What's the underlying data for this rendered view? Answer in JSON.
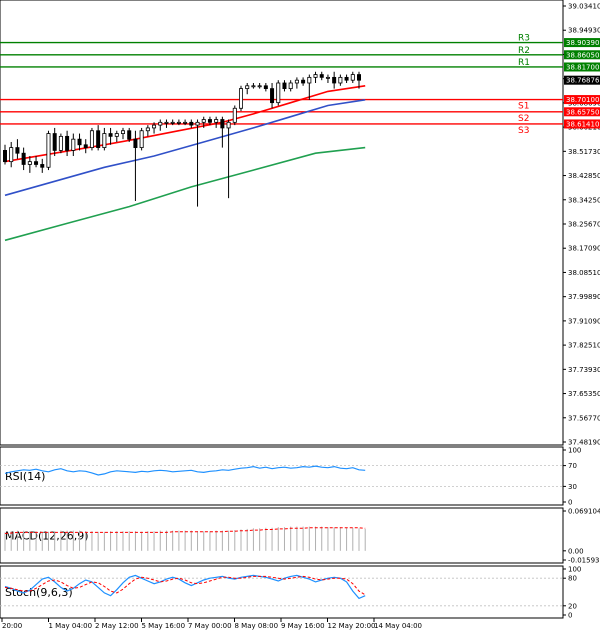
{
  "chart_data": [
    {
      "type": "candlestick",
      "panel": "price",
      "title": "",
      "y_ticks": [
        "39.03410",
        "38.94930",
        "38.86050",
        "38.77570",
        "38.68690",
        "38.60210",
        "38.51730",
        "38.42850",
        "38.34250",
        "38.25670",
        "38.17090",
        "38.08510",
        "37.99890",
        "37.91090",
        "37.82510",
        "37.73930",
        "37.65350",
        "37.56770",
        "37.48190"
      ],
      "ylim": [
        37.4819,
        39.0341
      ],
      "x_ticks": [
        "20:00",
        "1 May 04:00",
        "2 May 12:00",
        "5 May 16:00",
        "7 May 00:00",
        "8 May 08:00",
        "9 May 16:00",
        "12 May 20:00",
        "14 May 04:00"
      ],
      "current_price": "38.76876",
      "levels": [
        {
          "name": "R3",
          "value": 38.9039,
          "label": "38.90390",
          "color": "#008000"
        },
        {
          "name": "R2",
          "value": 38.8605,
          "label": "38.86050",
          "color": "#008000"
        },
        {
          "name": "R1",
          "value": 38.817,
          "label": "38.81700",
          "color": "#008000"
        },
        {
          "name": "S1",
          "value": 38.701,
          "label": "38.70100",
          "color": "#ff0000"
        },
        {
          "name": "S2",
          "value": 38.6575,
          "label": "38.65750",
          "color": "#ff0000"
        },
        {
          "name": "S3",
          "value": 38.6141,
          "label": "38.61410",
          "color": "#ff0000"
        }
      ],
      "candles": [
        {
          "o": 38.52,
          "h": 38.54,
          "l": 38.47,
          "c": 38.48
        },
        {
          "o": 38.48,
          "h": 38.55,
          "l": 38.46,
          "c": 38.53
        },
        {
          "o": 38.53,
          "h": 38.56,
          "l": 38.49,
          "c": 38.51
        },
        {
          "o": 38.51,
          "h": 38.53,
          "l": 38.45,
          "c": 38.47
        },
        {
          "o": 38.47,
          "h": 38.5,
          "l": 38.44,
          "c": 38.48
        },
        {
          "o": 38.48,
          "h": 38.5,
          "l": 38.46,
          "c": 38.47
        },
        {
          "o": 38.47,
          "h": 38.49,
          "l": 38.44,
          "c": 38.46
        },
        {
          "o": 38.46,
          "h": 38.59,
          "l": 38.45,
          "c": 38.58
        },
        {
          "o": 38.58,
          "h": 38.6,
          "l": 38.5,
          "c": 38.52
        },
        {
          "o": 38.52,
          "h": 38.58,
          "l": 38.51,
          "c": 38.57
        },
        {
          "o": 38.57,
          "h": 38.59,
          "l": 38.5,
          "c": 38.52
        },
        {
          "o": 38.52,
          "h": 38.58,
          "l": 38.5,
          "c": 38.56
        },
        {
          "o": 38.56,
          "h": 38.58,
          "l": 38.52,
          "c": 38.54
        },
        {
          "o": 38.54,
          "h": 38.56,
          "l": 38.51,
          "c": 38.53
        },
        {
          "o": 38.53,
          "h": 38.6,
          "l": 38.52,
          "c": 38.59
        },
        {
          "o": 38.59,
          "h": 38.61,
          "l": 38.52,
          "c": 38.53
        },
        {
          "o": 38.53,
          "h": 38.6,
          "l": 38.52,
          "c": 38.58
        },
        {
          "o": 38.58,
          "h": 38.6,
          "l": 38.54,
          "c": 38.57
        },
        {
          "o": 38.57,
          "h": 38.59,
          "l": 38.55,
          "c": 38.58
        },
        {
          "o": 38.58,
          "h": 38.6,
          "l": 38.56,
          "c": 38.59
        },
        {
          "o": 38.59,
          "h": 38.6,
          "l": 38.55,
          "c": 38.56
        },
        {
          "o": 38.56,
          "h": 38.59,
          "l": 38.34,
          "c": 38.53
        },
        {
          "o": 38.53,
          "h": 38.6,
          "l": 38.52,
          "c": 38.59
        },
        {
          "o": 38.59,
          "h": 38.61,
          "l": 38.57,
          "c": 38.6
        },
        {
          "o": 38.6,
          "h": 38.62,
          "l": 38.58,
          "c": 38.61
        },
        {
          "o": 38.61,
          "h": 38.63,
          "l": 38.59,
          "c": 38.62
        },
        {
          "o": 38.62,
          "h": 38.63,
          "l": 38.6,
          "c": 38.62
        },
        {
          "o": 38.62,
          "h": 38.63,
          "l": 38.61,
          "c": 38.62
        },
        {
          "o": 38.62,
          "h": 38.63,
          "l": 38.61,
          "c": 38.62
        },
        {
          "o": 38.62,
          "h": 38.63,
          "l": 38.61,
          "c": 38.62
        },
        {
          "o": 38.62,
          "h": 38.63,
          "l": 38.6,
          "c": 38.61
        },
        {
          "o": 38.61,
          "h": 38.63,
          "l": 38.32,
          "c": 38.62
        },
        {
          "o": 38.62,
          "h": 38.64,
          "l": 38.6,
          "c": 38.63
        },
        {
          "o": 38.63,
          "h": 38.64,
          "l": 38.61,
          "c": 38.62
        },
        {
          "o": 38.62,
          "h": 38.64,
          "l": 38.6,
          "c": 38.63
        },
        {
          "o": 38.63,
          "h": 38.64,
          "l": 38.53,
          "c": 38.6
        },
        {
          "o": 38.6,
          "h": 38.63,
          "l": 38.35,
          "c": 38.62
        },
        {
          "o": 38.62,
          "h": 38.68,
          "l": 38.61,
          "c": 38.67
        },
        {
          "o": 38.67,
          "h": 38.75,
          "l": 38.66,
          "c": 38.74
        },
        {
          "o": 38.74,
          "h": 38.76,
          "l": 38.72,
          "c": 38.75
        },
        {
          "o": 38.75,
          "h": 38.76,
          "l": 38.74,
          "c": 38.75
        },
        {
          "o": 38.75,
          "h": 38.76,
          "l": 38.74,
          "c": 38.75
        },
        {
          "o": 38.75,
          "h": 38.76,
          "l": 38.73,
          "c": 38.74
        },
        {
          "o": 38.74,
          "h": 38.76,
          "l": 38.67,
          "c": 38.69
        },
        {
          "o": 38.69,
          "h": 38.77,
          "l": 38.68,
          "c": 38.76
        },
        {
          "o": 38.76,
          "h": 38.77,
          "l": 38.73,
          "c": 38.74
        },
        {
          "o": 38.74,
          "h": 38.77,
          "l": 38.73,
          "c": 38.76
        },
        {
          "o": 38.76,
          "h": 38.78,
          "l": 38.74,
          "c": 38.77
        },
        {
          "o": 38.77,
          "h": 38.78,
          "l": 38.75,
          "c": 38.76
        },
        {
          "o": 38.76,
          "h": 38.79,
          "l": 38.7,
          "c": 38.78
        },
        {
          "o": 38.78,
          "h": 38.8,
          "l": 38.76,
          "c": 38.79
        },
        {
          "o": 38.79,
          "h": 38.8,
          "l": 38.77,
          "c": 38.78
        },
        {
          "o": 38.78,
          "h": 38.79,
          "l": 38.76,
          "c": 38.78
        },
        {
          "o": 38.78,
          "h": 38.8,
          "l": 38.74,
          "c": 38.76
        },
        {
          "o": 38.76,
          "h": 38.79,
          "l": 38.75,
          "c": 38.78
        },
        {
          "o": 38.78,
          "h": 38.79,
          "l": 38.76,
          "c": 38.77
        },
        {
          "o": 38.77,
          "h": 38.8,
          "l": 38.76,
          "c": 38.79
        },
        {
          "o": 38.79,
          "h": 38.8,
          "l": 38.74,
          "c": 38.77
        }
      ],
      "moving_averages": [
        {
          "color": "#ff0000",
          "x": [
            0,
            8,
            16,
            21,
            28,
            35,
            40,
            46,
            52,
            58
          ],
          "y": [
            38.48,
            38.51,
            38.54,
            38.56,
            38.59,
            38.62,
            38.65,
            38.69,
            38.73,
            38.75
          ]
        },
        {
          "color": "#3050c8",
          "x": [
            0,
            8,
            16,
            24,
            32,
            40,
            46,
            52,
            58
          ],
          "y": [
            38.36,
            38.41,
            38.46,
            38.5,
            38.55,
            38.6,
            38.64,
            38.68,
            38.7
          ]
        },
        {
          "color": "#20a050",
          "x": [
            0,
            10,
            20,
            30,
            40,
            50,
            58
          ],
          "y": [
            38.2,
            38.26,
            38.32,
            38.39,
            38.45,
            38.51,
            38.53
          ]
        }
      ]
    },
    {
      "type": "line",
      "panel": "indicator",
      "label": "RSI(14)",
      "y_ticks": [
        "100",
        "70",
        "30",
        "0"
      ],
      "ylim": [
        0,
        100
      ],
      "values": [
        55,
        58,
        60,
        62,
        61,
        63,
        60,
        58,
        62,
        64,
        60,
        58,
        60,
        59,
        56,
        52,
        54,
        58,
        60,
        59,
        58,
        57,
        59,
        58,
        60,
        61,
        60,
        58,
        59,
        60,
        61,
        58,
        57,
        59,
        60,
        62,
        61,
        63,
        65,
        66,
        68,
        65,
        67,
        64,
        66,
        67,
        65,
        66,
        68,
        67,
        69,
        67,
        66,
        68,
        65,
        64,
        66,
        62,
        61
      ],
      "color": "#1e90ff"
    },
    {
      "type": "bar",
      "panel": "indicator",
      "label": "MACD(12,26,9)",
      "y_ticks": [
        "0.069104",
        "0.00",
        "-0.015936"
      ],
      "ylim": [
        -0.015936,
        0.069104
      ],
      "values": [
        0.032,
        0.034,
        0.035,
        0.035,
        0.034,
        0.034,
        0.033,
        0.033,
        0.034,
        0.035,
        0.035,
        0.035,
        0.035,
        0.034,
        0.034,
        0.033,
        0.033,
        0.034,
        0.034,
        0.034,
        0.034,
        0.034,
        0.033,
        0.034,
        0.034,
        0.035,
        0.035,
        0.035,
        0.035,
        0.035,
        0.035,
        0.034,
        0.034,
        0.034,
        0.035,
        0.035,
        0.035,
        0.036,
        0.037,
        0.038,
        0.039,
        0.039,
        0.04,
        0.04,
        0.041,
        0.041,
        0.042,
        0.042,
        0.042,
        0.042,
        0.042,
        0.042,
        0.041,
        0.041,
        0.041,
        0.04,
        0.04,
        0.039,
        0.038
      ],
      "signal": [
        0.03,
        0.031,
        0.032,
        0.032,
        0.032,
        0.032,
        0.032,
        0.032,
        0.032,
        0.032,
        0.032,
        0.032,
        0.032,
        0.032,
        0.032,
        0.032,
        0.032,
        0.032,
        0.032,
        0.032,
        0.032,
        0.032,
        0.032,
        0.032,
        0.032,
        0.032,
        0.032,
        0.033,
        0.033,
        0.033,
        0.033,
        0.033,
        0.033,
        0.033,
        0.033,
        0.033,
        0.034,
        0.034,
        0.035,
        0.035,
        0.036,
        0.036,
        0.037,
        0.037,
        0.038,
        0.038,
        0.039,
        0.039,
        0.039,
        0.04,
        0.04,
        0.04,
        0.04,
        0.04,
        0.04,
        0.04,
        0.04,
        0.04,
        0.039
      ],
      "color": "#b0b0b0",
      "signal_color": "#ff0000"
    },
    {
      "type": "line",
      "panel": "indicator",
      "label": "Stoch(9,6,3)",
      "y_ticks": [
        "100",
        "80",
        "20",
        "0"
      ],
      "ylim": [
        0,
        100
      ],
      "main": [
        62,
        58,
        52,
        48,
        54,
        66,
        78,
        82,
        72,
        60,
        52,
        58,
        68,
        76,
        72,
        60,
        48,
        42,
        55,
        70,
        82,
        86,
        80,
        74,
        68,
        72,
        78,
        82,
        78,
        70,
        64,
        70,
        76,
        80,
        82,
        84,
        80,
        78,
        82,
        84,
        86,
        84,
        82,
        78,
        74,
        80,
        84,
        86,
        82,
        78,
        72,
        76,
        80,
        82,
        80,
        72,
        52,
        36,
        42
      ],
      "signal": [
        60,
        58,
        55,
        52,
        52,
        58,
        66,
        74,
        76,
        72,
        64,
        58,
        60,
        66,
        72,
        70,
        62,
        52,
        48,
        56,
        68,
        78,
        82,
        80,
        76,
        72,
        74,
        78,
        80,
        76,
        70,
        68,
        70,
        74,
        78,
        82,
        82,
        80,
        80,
        82,
        84,
        84,
        84,
        82,
        80,
        78,
        80,
        82,
        84,
        82,
        78,
        76,
        78,
        80,
        80,
        78,
        68,
        52,
        44
      ],
      "color": "#1e90ff",
      "signal_color": "#ff0000"
    }
  ]
}
